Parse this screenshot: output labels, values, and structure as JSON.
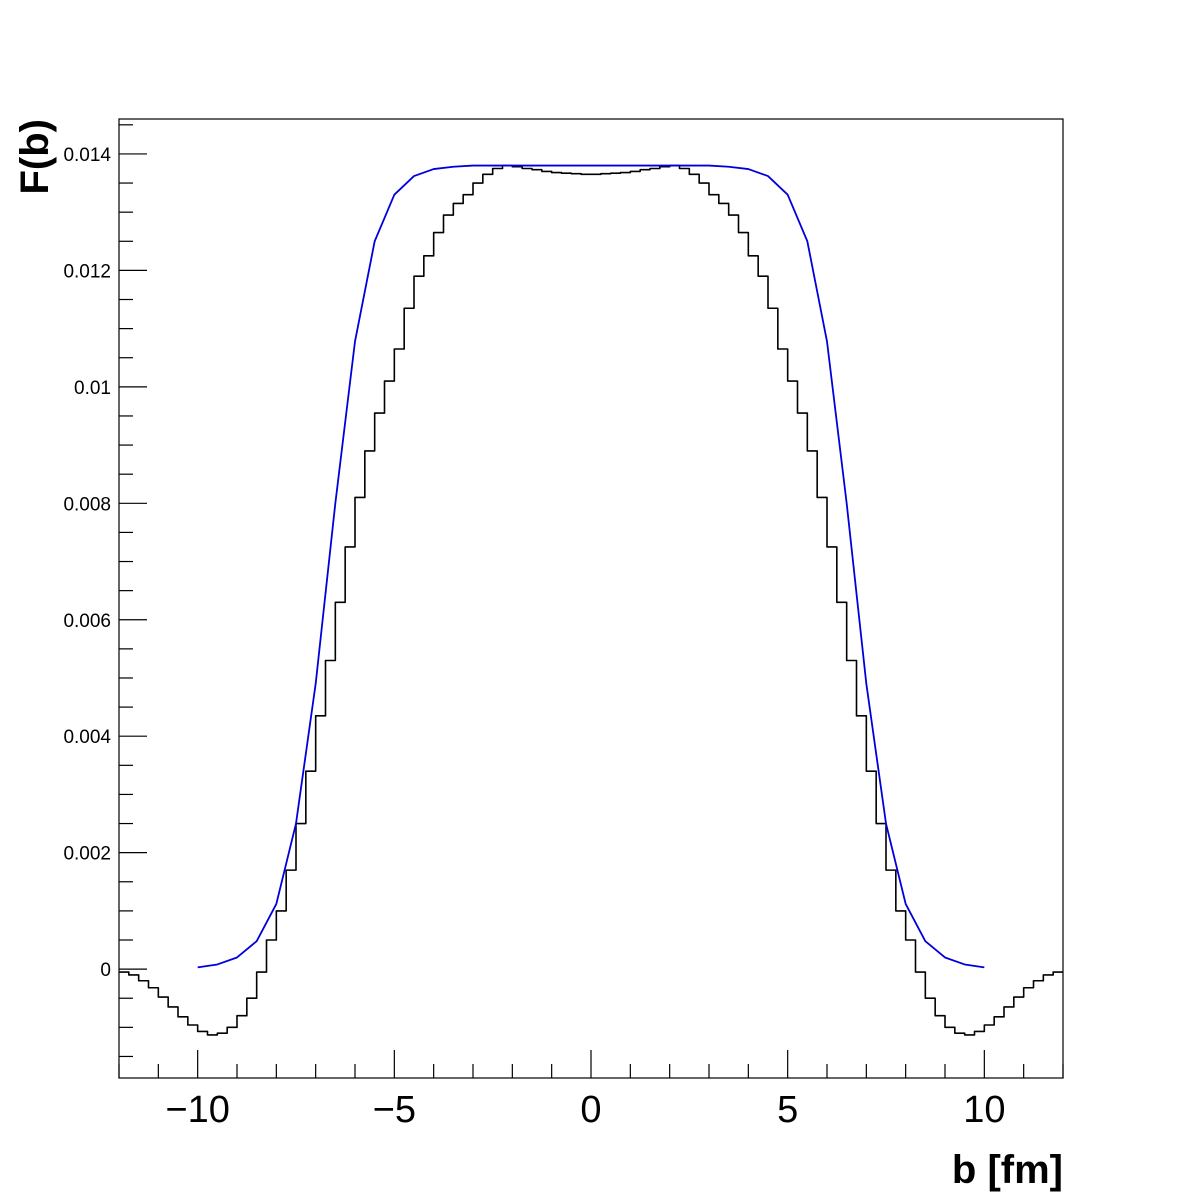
{
  "chart_data": {
    "type": "line",
    "title": "",
    "xlabel": "b [fm]",
    "ylabel": "F(b)",
    "xlim": [
      -12,
      12
    ],
    "ylim": [
      -0.00187,
      0.0146
    ],
    "grid": false,
    "x_ticks": [
      -10,
      -5,
      0,
      5,
      10
    ],
    "x_tick_labels": [
      "−10",
      "−5",
      "0",
      "5",
      "10"
    ],
    "y_ticks": [
      0,
      0.002,
      0.004,
      0.006,
      0.008,
      0.01,
      0.012,
      0.014
    ],
    "y_tick_labels": [
      "0",
      "0.002",
      "0.004",
      "0.006",
      "0.008",
      "0.01",
      "0.012",
      "0.014"
    ],
    "series": [
      {
        "style": "step-histogram",
        "color": "#000000",
        "bin_width": 0.25,
        "x": [
          -11.875,
          -11.625,
          -11.375,
          -11.125,
          -10.875,
          -10.625,
          -10.375,
          -10.125,
          -9.875,
          -9.625,
          -9.375,
          -9.125,
          -8.875,
          -8.625,
          -8.375,
          -8.125,
          -7.875,
          -7.625,
          -7.375,
          -7.125,
          -6.875,
          -6.625,
          -6.375,
          -6.125,
          -5.875,
          -5.625,
          -5.375,
          -5.125,
          -4.875,
          -4.625,
          -4.375,
          -4.125,
          -3.875,
          -3.625,
          -3.375,
          -3.125,
          -2.875,
          -2.625,
          -2.375,
          -2.125,
          -1.875,
          -1.625,
          -1.375,
          -1.125,
          -0.875,
          -0.625,
          -0.375,
          -0.125,
          0.125,
          0.375,
          0.625,
          0.875,
          1.125,
          1.375,
          1.625,
          1.875,
          2.125,
          2.375,
          2.625,
          2.875,
          3.125,
          3.375,
          3.625,
          3.875,
          4.125,
          4.375,
          4.625,
          4.875,
          5.125,
          5.375,
          5.625,
          5.875,
          6.125,
          6.375,
          6.625,
          6.875,
          7.125,
          7.375,
          7.625,
          7.875,
          8.125,
          8.375,
          8.625,
          8.875,
          9.125,
          9.375,
          9.625,
          9.875,
          10.125,
          10.375,
          10.625,
          10.875,
          11.125,
          11.375,
          11.625,
          11.875
        ],
        "y": [
          -5e-05,
          -0.0001,
          -0.0002,
          -0.00032,
          -0.00048,
          -0.00065,
          -0.00082,
          -0.00096,
          -0.00107,
          -0.00113,
          -0.0011,
          -0.001,
          -0.0008,
          -0.0005,
          -5e-05,
          0.0005,
          0.001,
          0.0017,
          0.0025,
          0.0034,
          0.00435,
          0.0053,
          0.0063,
          0.00725,
          0.0081,
          0.0089,
          0.00955,
          0.0101,
          0.01065,
          0.01135,
          0.0119,
          0.01225,
          0.01265,
          0.01295,
          0.01315,
          0.0133,
          0.0135,
          0.01365,
          0.01375,
          0.0138,
          0.01378,
          0.01375,
          0.01373,
          0.0137,
          0.01368,
          0.01367,
          0.01366,
          0.01365,
          0.01365,
          0.01366,
          0.01367,
          0.01368,
          0.0137,
          0.01373,
          0.01375,
          0.01378,
          0.0138,
          0.01375,
          0.01365,
          0.0135,
          0.0133,
          0.01315,
          0.01295,
          0.01265,
          0.01225,
          0.0119,
          0.01135,
          0.01065,
          0.0101,
          0.00955,
          0.0089,
          0.0081,
          0.00725,
          0.0063,
          0.0053,
          0.00435,
          0.0034,
          0.0025,
          0.0017,
          0.001,
          0.0005,
          -5e-05,
          -0.0005,
          -0.0008,
          -0.001,
          -0.0011,
          -0.00113,
          -0.00107,
          -0.00096,
          -0.00082,
          -0.00065,
          -0.00048,
          -0.00032,
          -0.0002,
          -0.0001,
          -5e-05
        ]
      },
      {
        "style": "smooth-line",
        "color": "#0000dd",
        "x": [
          -10,
          -9.5,
          -9,
          -8.5,
          -8,
          -7.5,
          -7,
          -6.5,
          -6,
          -5.5,
          -5,
          -4.5,
          -4,
          -3.5,
          -3,
          -2.5,
          -2,
          -1.5,
          -1,
          -0.5,
          0,
          0.5,
          1,
          1.5,
          2,
          2.5,
          3,
          3.5,
          4,
          4.5,
          5,
          5.5,
          6,
          6.5,
          7,
          7.5,
          8,
          8.5,
          9,
          9.5,
          10
        ],
        "y": [
          3e-05,
          8e-05,
          0.0002,
          0.00048,
          0.00112,
          0.0025,
          0.0049,
          0.008,
          0.01078,
          0.0125,
          0.0133,
          0.01362,
          0.01374,
          0.01378,
          0.0138,
          0.0138,
          0.0138,
          0.0138,
          0.0138,
          0.0138,
          0.0138,
          0.0138,
          0.0138,
          0.0138,
          0.0138,
          0.0138,
          0.0138,
          0.01378,
          0.01374,
          0.01362,
          0.0133,
          0.0125,
          0.01078,
          0.008,
          0.0049,
          0.0025,
          0.00112,
          0.00048,
          0.0002,
          8e-05,
          3e-05
        ]
      }
    ]
  }
}
